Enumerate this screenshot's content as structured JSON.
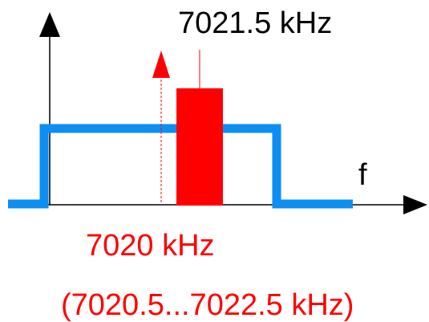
{
  "labels": {
    "received_frequency": "7021.5 kHz",
    "axis_symbol": "f",
    "transmit_frequency": "7020 kHz",
    "passband_range": "(7020.5...7022.5 kHz)"
  },
  "colors": {
    "axis": "#000000",
    "passband": "#0d8ef2",
    "signal": "#ff0000"
  }
}
